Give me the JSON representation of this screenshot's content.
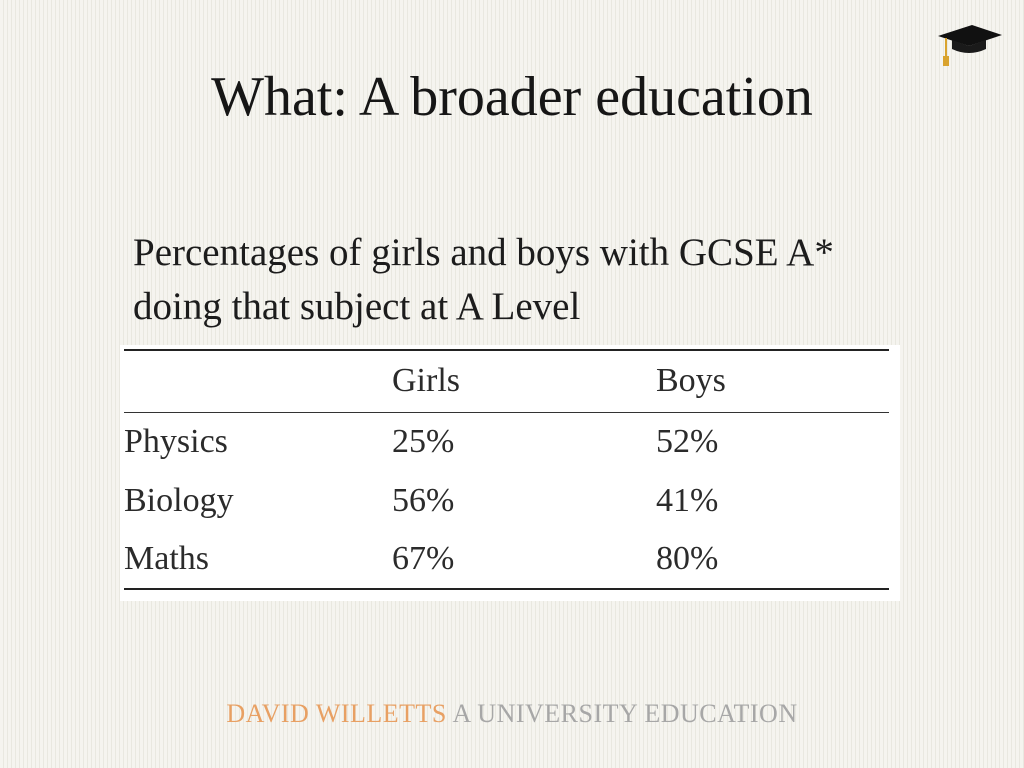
{
  "slide": {
    "title": "What: A broader education",
    "subtitle": "Percentages of girls and boys with GCSE A* doing that subject at A Level"
  },
  "table": {
    "headers": [
      "",
      "Girls",
      "Boys"
    ],
    "rows": [
      {
        "subject": "Physics",
        "girls": "25%",
        "boys": "52%"
      },
      {
        "subject": "Biology",
        "girls": "56%",
        "boys": "41%"
      },
      {
        "subject": "Maths",
        "girls": "67%",
        "boys": "80%"
      }
    ]
  },
  "footer": {
    "author": "DAVID WILLETTS",
    "book": "A UNIVERSITY EDUCATION"
  },
  "icons": {
    "corner": "graduation-cap-icon"
  },
  "colors": {
    "author": "#e8a063",
    "book": "#a7a7a7",
    "cap": "#111111",
    "tassel": "#d9a32e"
  }
}
